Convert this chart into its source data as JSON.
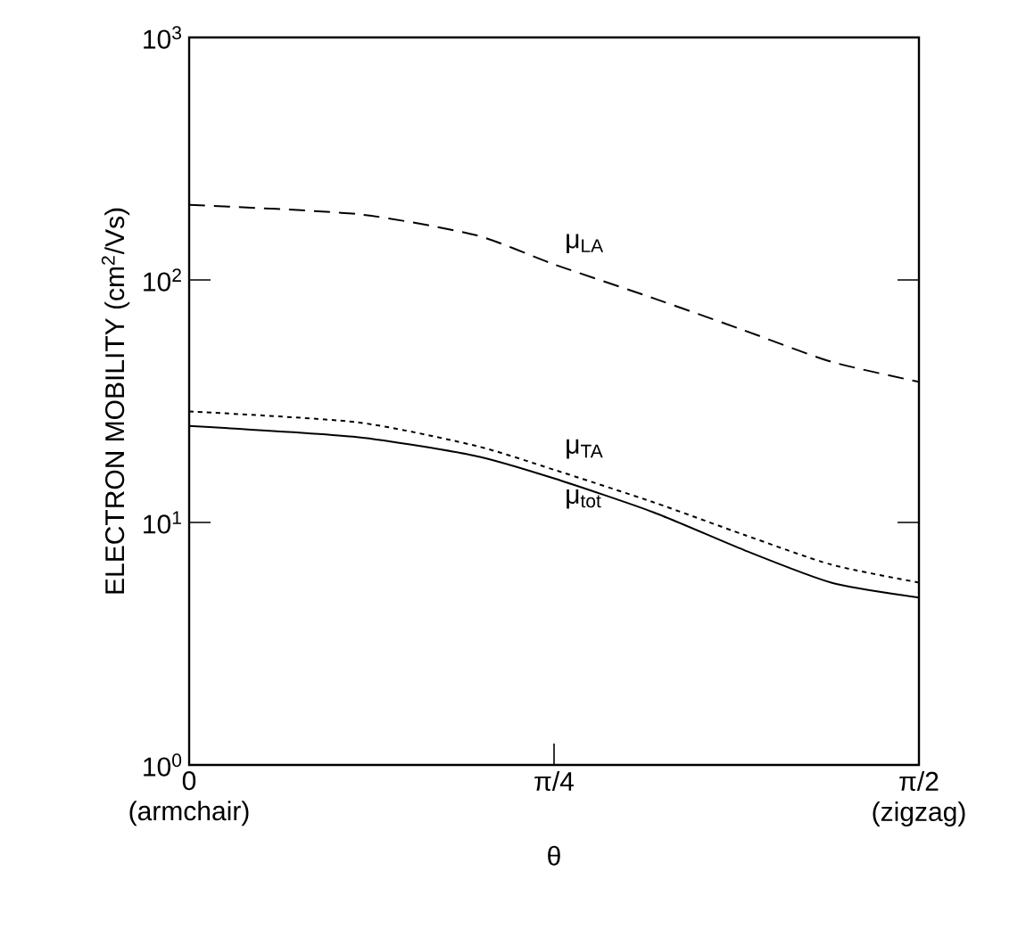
{
  "chart_data": {
    "type": "line",
    "xlabel": "θ",
    "ylabel": "ELECTRON MOBILITY (cm$^{2}$/Vs)",
    "log": "y",
    "xlim": [
      0,
      1.5708
    ],
    "ylim": [
      1,
      1000
    ],
    "xticks": [
      {
        "value": 0,
        "label": "0 (armchair)"
      },
      {
        "value": 0.7854,
        "label": "π/4"
      },
      {
        "value": 1.5708,
        "label": "π/2 (zigzag)"
      }
    ],
    "yticks": [
      {
        "value": 1,
        "label": "10$^{0}$"
      },
      {
        "value": 10,
        "label": "10$^{1}$"
      },
      {
        "value": 100,
        "label": "10$^{2}$"
      },
      {
        "value": 1000,
        "label": "10$^{3}$"
      }
    ],
    "x": [
      0,
      0.361,
      0.617,
      0.785,
      1.0,
      1.194,
      1.382,
      1.5708
    ],
    "series": [
      {
        "color": "#000000",
        "line_style": "dashed",
        "values": [
          204,
          187,
          153,
          116,
          84,
          62,
          46,
          38
        ]
      },
      {
        "color": "#000000",
        "line_style": "dotted",
        "values": [
          28.7,
          25.9,
          20.7,
          16.5,
          12.1,
          8.9,
          6.7,
          5.65
        ]
      },
      {
        "color": "#000000",
        "line_style": "solid",
        "values": [
          25,
          22.5,
          18.8,
          15.2,
          11.0,
          7.7,
          5.65,
          4.9
        ]
      }
    ],
    "annotations": [
      "μ$_{LA}$",
      "μ$_{TA}$",
      "μ$_{tot}$"
    ],
    "grid": false,
    "legend": false,
    "marker": "none"
  }
}
